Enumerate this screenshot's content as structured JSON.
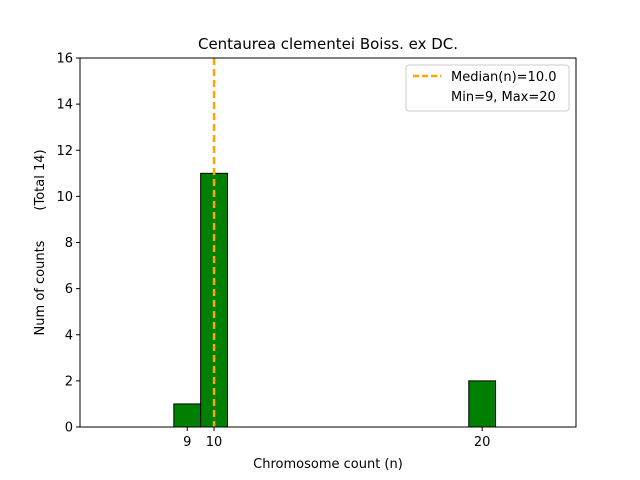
{
  "chart_data": {
    "type": "bar",
    "title": "Centaurea clementei Boiss. ex DC.",
    "xlabel": "Chromosome count (n)",
    "ylabel": "Num of counts",
    "ylabel_total": "(Total 14)",
    "xlim": [
      5,
      23.5
    ],
    "ylim": [
      0,
      16
    ],
    "x_ticks": [
      9,
      10,
      20
    ],
    "y_ticks": [
      0,
      2,
      4,
      6,
      8,
      10,
      12,
      14,
      16
    ],
    "bar_width": 1,
    "bars": [
      {
        "x": 9,
        "value": 1
      },
      {
        "x": 10,
        "value": 11
      },
      {
        "x": 20,
        "value": 2
      }
    ],
    "median": 10.0,
    "legend": {
      "position": "top-right",
      "median_label": "Median(n)=10.0",
      "range_label": "Min=9, Max=20"
    },
    "colors": {
      "bar_fill": "#008000",
      "bar_edge": "#000000",
      "median_line": "#FFA500"
    }
  }
}
